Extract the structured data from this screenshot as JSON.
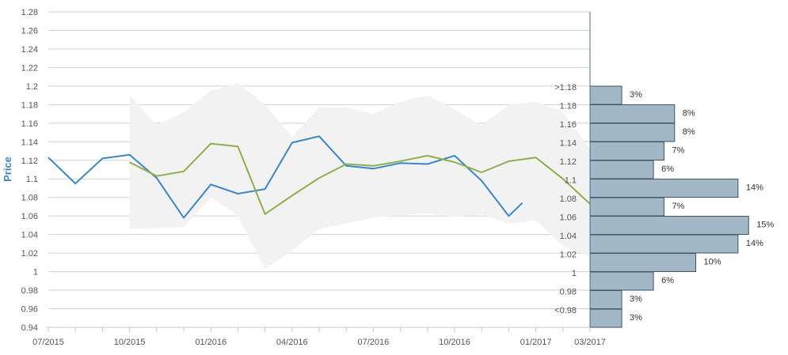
{
  "chart_data": {
    "type": "line",
    "ylabel": "Price",
    "xlabel": "",
    "ylim": [
      0.94,
      1.28
    ],
    "y_ticks": [
      "1.28",
      "1.26",
      "1.24",
      "1.22",
      "1.2",
      "1.18",
      "1.16",
      "1.14",
      "1.12",
      "1.1",
      "1.08",
      "1.06",
      "1.04",
      "1.02",
      "1",
      "0.98",
      "0.96",
      "0.94"
    ],
    "x_ticks": [
      "07/2015",
      "10/2015",
      "01/2016",
      "04/2016",
      "07/2016",
      "10/2016",
      "01/2017",
      "03/2017"
    ],
    "grid": true,
    "colors": {
      "historical": "#3a87c8",
      "forecast": "#8db04a",
      "range": "#f2f2f2",
      "histogram": "#a3b8c7",
      "histogram_border": "#3e5566",
      "axis": "#4a6f84",
      "label": "#555555"
    },
    "series": [
      {
        "role": "historical",
        "points": [
          [
            "07/2015",
            1.123
          ],
          [
            "08/2015",
            1.095
          ],
          [
            "09/2015",
            1.122
          ],
          [
            "10/2015",
            1.126
          ],
          [
            "11/2015",
            1.101
          ],
          [
            "12/2015",
            1.058
          ],
          [
            "01/2016",
            1.094
          ],
          [
            "02/2016",
            1.084
          ],
          [
            "03/2016",
            1.089
          ],
          [
            "04/2016",
            1.139
          ],
          [
            "05/2016",
            1.146
          ],
          [
            "06/2016",
            1.114
          ],
          [
            "07/2016",
            1.111
          ],
          [
            "08/2016",
            1.117
          ],
          [
            "09/2016",
            1.116
          ],
          [
            "10/2016",
            1.125
          ],
          [
            "11/2016",
            1.098
          ],
          [
            "12/2016",
            1.06
          ],
          [
            "12/2016 (late)",
            1.074
          ]
        ]
      },
      {
        "role": "forecast",
        "points": [
          [
            "10/2015",
            1.118
          ],
          [
            "11/2015",
            1.103
          ],
          [
            "12/2015",
            1.108
          ],
          [
            "01/2016",
            1.138
          ],
          [
            "02/2016",
            1.135
          ],
          [
            "03/2016",
            1.062
          ],
          [
            "04/2016",
            1.082
          ],
          [
            "05/2016",
            1.101
          ],
          [
            "06/2016",
            1.116
          ],
          [
            "07/2016",
            1.114
          ],
          [
            "08/2016",
            1.119
          ],
          [
            "09/2016",
            1.125
          ],
          [
            "10/2016",
            1.118
          ],
          [
            "11/2016",
            1.107
          ],
          [
            "12/2016",
            1.119
          ],
          [
            "01/2017",
            1.123
          ],
          [
            "02/2017",
            1.1
          ],
          [
            "03/2017",
            1.073
          ]
        ]
      }
    ],
    "forecast_range": [
      [
        "10/2015",
        1.046,
        1.19
      ],
      [
        "11/2015",
        1.047,
        1.158
      ],
      [
        "12/2015",
        1.048,
        1.172
      ],
      [
        "01/2016",
        1.08,
        1.195
      ],
      [
        "02/2016",
        1.06,
        1.203
      ],
      [
        "03/2016",
        1.003,
        1.18
      ],
      [
        "04/2016",
        1.022,
        1.145
      ],
      [
        "05/2016",
        1.046,
        1.177
      ],
      [
        "06/2016",
        1.052,
        1.177
      ],
      [
        "07/2016",
        1.058,
        1.17
      ],
      [
        "08/2016",
        1.061,
        1.183
      ],
      [
        "09/2016",
        1.063,
        1.19
      ],
      [
        "10/2016",
        1.059,
        1.175
      ],
      [
        "11/2016",
        1.062,
        1.158
      ],
      [
        "12/2016",
        1.052,
        1.18
      ],
      [
        "01/2017",
        1.055,
        1.183
      ],
      [
        "02/2017",
        1.028,
        1.172
      ],
      [
        "03/2017",
        1.016,
        1.132
      ]
    ],
    "histogram": [
      {
        "label": ">1.18",
        "percent": 3,
        "percent_label": "3%"
      },
      {
        "label": "1.18",
        "percent": 8,
        "percent_label": "8%"
      },
      {
        "label": "1.16",
        "percent": 8,
        "percent_label": "8%"
      },
      {
        "label": "1.14",
        "percent": 7,
        "percent_label": "7%"
      },
      {
        "label": "1.12",
        "percent": 6,
        "percent_label": "6%"
      },
      {
        "label": "1.1",
        "percent": 14,
        "percent_label": "14%"
      },
      {
        "label": "1.08",
        "percent": 7,
        "percent_label": "7%"
      },
      {
        "label": "1.06",
        "percent": 15,
        "percent_label": "15%"
      },
      {
        "label": "1.04",
        "percent": 14,
        "percent_label": "14%"
      },
      {
        "label": "1.02",
        "percent": 10,
        "percent_label": "10%"
      },
      {
        "label": "1",
        "percent": 6,
        "percent_label": "6%"
      },
      {
        "label": "0.98",
        "percent": 3,
        "percent_label": "3%"
      },
      {
        "label": "<0.98",
        "percent": 3,
        "percent_label": "3%"
      }
    ]
  }
}
